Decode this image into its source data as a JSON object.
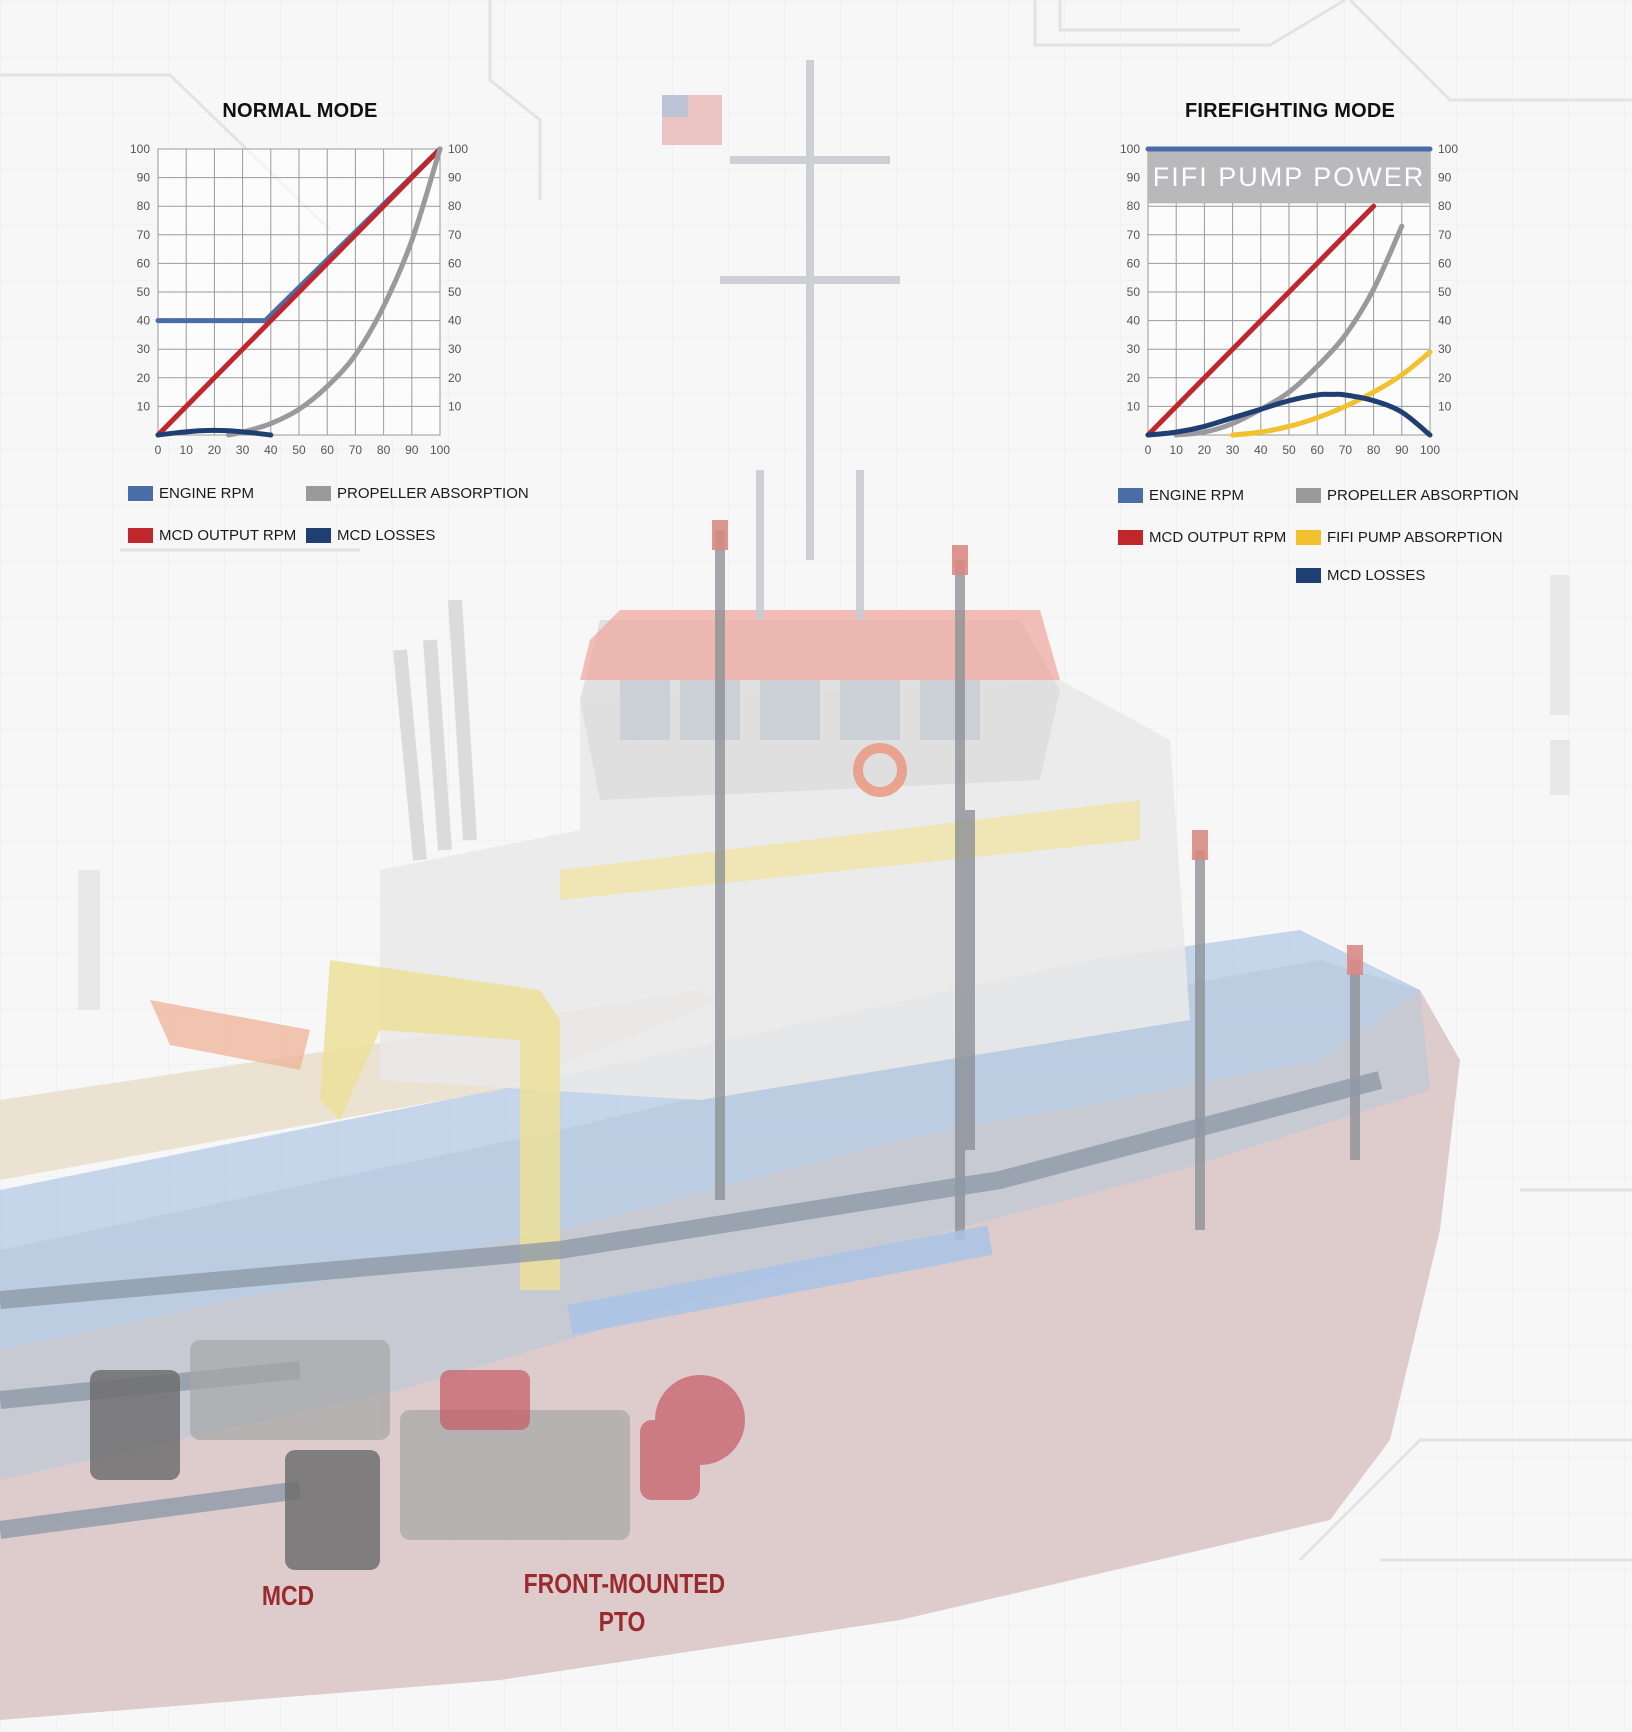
{
  "colors": {
    "engine_rpm": "#4a6da7",
    "mcd_output_rpm": "#c0272d",
    "propeller_absorption": "#9a9a9c",
    "fifi_pump_absorption": "#f2c12e",
    "mcd_losses": "#1f3f73",
    "label_red": "#9b2a2e"
  },
  "labels": {
    "mcd": "MCD",
    "front_mounted_line1": "FRONT-MOUNTED",
    "front_mounted_line2": "PTO"
  },
  "chart_data": [
    {
      "type": "line",
      "title": "NORMAL MODE",
      "xlim": [
        0,
        100
      ],
      "ylim": [
        0,
        100
      ],
      "x_ticks": [
        "0",
        "10",
        "20",
        "30",
        "40",
        "50",
        "60",
        "70",
        "80",
        "90",
        "100"
      ],
      "y_ticks_left": [
        "10",
        "20",
        "30",
        "40",
        "50",
        "60",
        "70",
        "80",
        "90",
        "100"
      ],
      "y_ticks_right": [
        "10",
        "20",
        "30",
        "40",
        "50",
        "60",
        "70",
        "80",
        "90",
        "100"
      ],
      "grid": true,
      "legend_position": "bottom",
      "series": [
        {
          "name": "ENGINE RPM",
          "color": "#4a6da7",
          "x": [
            0,
            38,
            100
          ],
          "y": [
            40,
            40,
            100
          ]
        },
        {
          "name": "MCD OUTPUT RPM",
          "color": "#c0272d",
          "x": [
            0,
            100
          ],
          "y": [
            0,
            100
          ]
        },
        {
          "name": "PROPELLER ABSORPTION",
          "color": "#9a9a9c",
          "x": [
            25,
            30,
            40,
            50,
            60,
            70,
            80,
            90,
            100
          ],
          "y": [
            0,
            1,
            4,
            9,
            17,
            28,
            45,
            68,
            100
          ]
        },
        {
          "name": "MCD LOSSES",
          "color": "#1f3f73",
          "x": [
            0,
            5,
            10,
            15,
            20,
            25,
            30,
            35,
            40
          ],
          "y": [
            0,
            0.6,
            1.1,
            1.5,
            1.6,
            1.5,
            1.1,
            0.6,
            0
          ]
        }
      ]
    },
    {
      "type": "line",
      "title": "FIREFIGHTING MODE",
      "annotation": "FIFI PUMP POWER",
      "xlim": [
        0,
        100
      ],
      "ylim": [
        0,
        100
      ],
      "x_ticks": [
        "0",
        "10",
        "20",
        "30",
        "40",
        "50",
        "60",
        "70",
        "80",
        "90",
        "100"
      ],
      "y_ticks_left": [
        "10",
        "20",
        "30",
        "40",
        "50",
        "60",
        "70",
        "80",
        "90",
        "100"
      ],
      "y_ticks_right": [
        "10",
        "20",
        "30",
        "40",
        "50",
        "60",
        "70",
        "80",
        "90",
        "100"
      ],
      "grid": true,
      "legend_position": "bottom",
      "series": [
        {
          "name": "ENGINE RPM",
          "color": "#4a6da7",
          "x": [
            0,
            100
          ],
          "y": [
            100,
            100
          ]
        },
        {
          "name": "MCD OUTPUT RPM",
          "color": "#c0272d",
          "x": [
            0,
            80
          ],
          "y": [
            0,
            80
          ]
        },
        {
          "name": "PROPELLER ABSORPTION",
          "color": "#9a9a9c",
          "x": [
            10,
            20,
            30,
            40,
            50,
            60,
            70,
            80,
            90
          ],
          "y": [
            0,
            1,
            4,
            9,
            15,
            24,
            35,
            51,
            73
          ]
        },
        {
          "name": "FIFI PUMP ABSORPTION",
          "color": "#f2c12e",
          "x": [
            30,
            40,
            50,
            60,
            70,
            80,
            90,
            100
          ],
          "y": [
            0,
            1,
            3,
            6,
            10,
            15,
            21,
            29
          ]
        },
        {
          "name": "MCD LOSSES",
          "color": "#1f3f73",
          "x": [
            0,
            10,
            20,
            30,
            40,
            50,
            60,
            65,
            70,
            80,
            90,
            100
          ],
          "y": [
            0,
            1,
            3,
            6,
            9,
            12,
            14,
            14.2,
            14,
            12,
            8,
            0
          ]
        }
      ]
    }
  ]
}
